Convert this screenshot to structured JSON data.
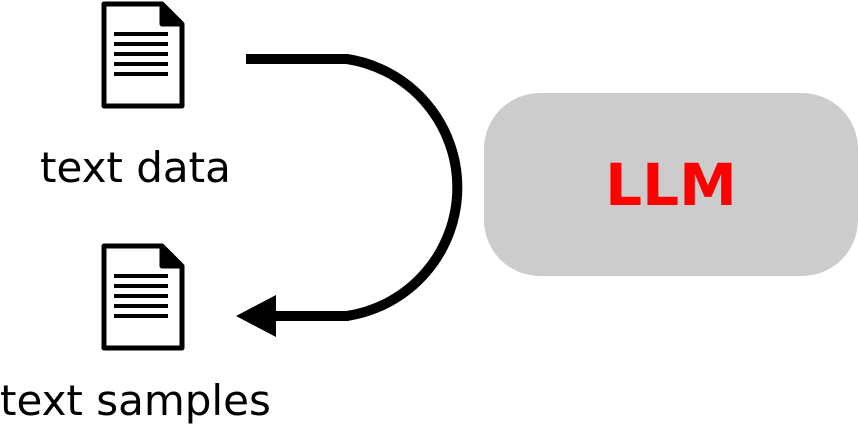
{
  "source_node": {
    "icon": "document-icon",
    "label": "text data"
  },
  "target_node": {
    "icon": "document-icon",
    "label": "text samples"
  },
  "model_node": {
    "label": "LLM",
    "text_color": "#ff0000",
    "fill_color": "#cccccc"
  },
  "edge": {
    "from": "source_node",
    "to": "target_node",
    "via": "model_node",
    "color": "#000000"
  }
}
